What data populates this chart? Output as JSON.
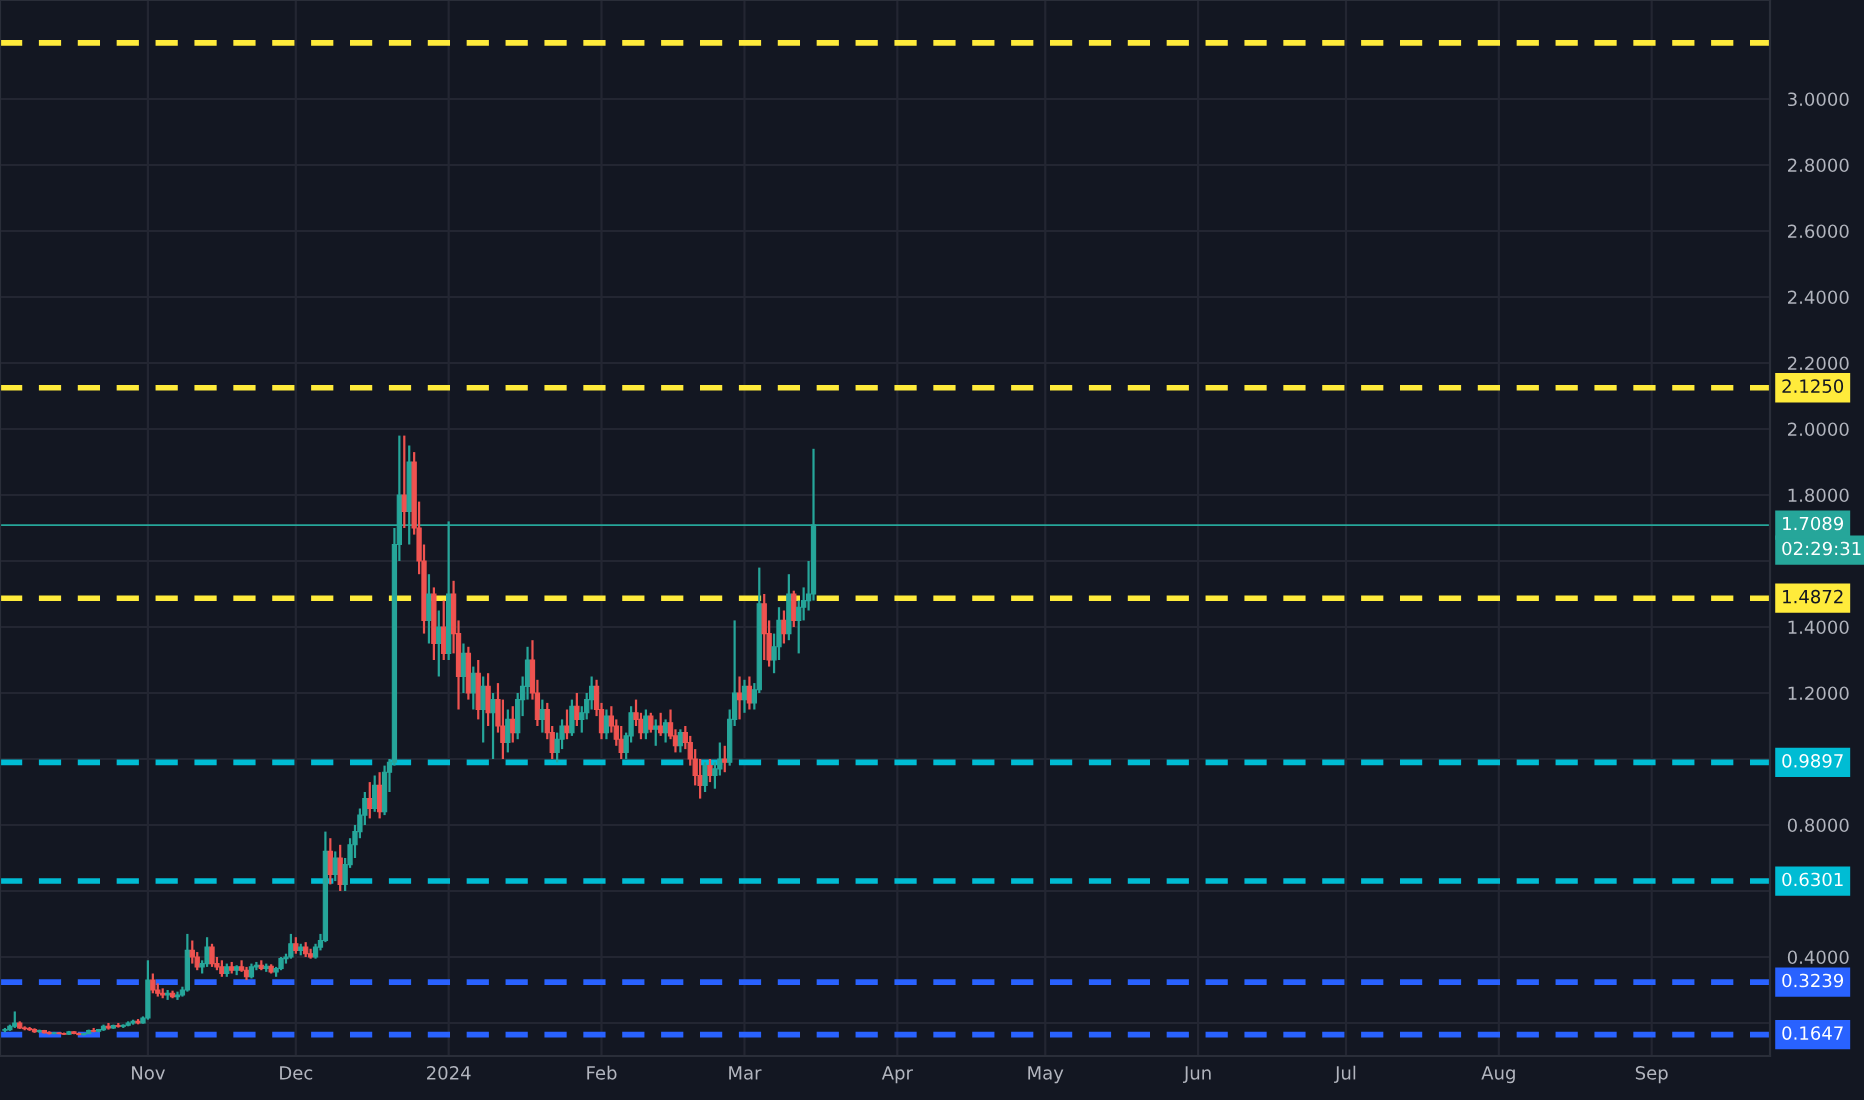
{
  "chart_data": {
    "type": "candlestick",
    "x": [
      "2023-10-03",
      "2023-10-04",
      "2023-10-05",
      "2023-10-06",
      "2023-10-07",
      "2023-10-08",
      "2023-10-09",
      "2023-10-10",
      "2023-10-11",
      "2023-10-12",
      "2023-10-13",
      "2023-10-14",
      "2023-10-15",
      "2023-10-16",
      "2023-10-17",
      "2023-10-18",
      "2023-10-19",
      "2023-10-20",
      "2023-10-21",
      "2023-10-22",
      "2023-10-23",
      "2023-10-24",
      "2023-10-25",
      "2023-10-26",
      "2023-10-27",
      "2023-10-28",
      "2023-10-29",
      "2023-10-30",
      "2023-10-31",
      "2023-11-01",
      "2023-11-02",
      "2023-11-03",
      "2023-11-04",
      "2023-11-05",
      "2023-11-06",
      "2023-11-07",
      "2023-11-08",
      "2023-11-09",
      "2023-11-10",
      "2023-11-11",
      "2023-11-12",
      "2023-11-13",
      "2023-11-14",
      "2023-11-15",
      "2023-11-16",
      "2023-11-17",
      "2023-11-18",
      "2023-11-19",
      "2023-11-20",
      "2023-11-21",
      "2023-11-22",
      "2023-11-23",
      "2023-11-24",
      "2023-11-25",
      "2023-11-26",
      "2023-11-27",
      "2023-11-28",
      "2023-11-29",
      "2023-11-30",
      "2023-12-01",
      "2023-12-02",
      "2023-12-03",
      "2023-12-04",
      "2023-12-05",
      "2023-12-06",
      "2023-12-07",
      "2023-12-08",
      "2023-12-09",
      "2023-12-10",
      "2023-12-11",
      "2023-12-12",
      "2023-12-13",
      "2023-12-14",
      "2023-12-15",
      "2023-12-16",
      "2023-12-17",
      "2023-12-18",
      "2023-12-19",
      "2023-12-20",
      "2023-12-21",
      "2023-12-22",
      "2023-12-23",
      "2023-12-24",
      "2023-12-25",
      "2023-12-26",
      "2023-12-27",
      "2023-12-28",
      "2023-12-29",
      "2023-12-30",
      "2023-12-31",
      "2024-01-01",
      "2024-01-02",
      "2024-01-03",
      "2024-01-04",
      "2024-01-05",
      "2024-01-06",
      "2024-01-07",
      "2024-01-08",
      "2024-01-09",
      "2024-01-10",
      "2024-01-11",
      "2024-01-12",
      "2024-01-13",
      "2024-01-14",
      "2024-01-15",
      "2024-01-16",
      "2024-01-17",
      "2024-01-18",
      "2024-01-19",
      "2024-01-20",
      "2024-01-21",
      "2024-01-22",
      "2024-01-23",
      "2024-01-24",
      "2024-01-25",
      "2024-01-26",
      "2024-01-27",
      "2024-01-28",
      "2024-01-29",
      "2024-01-30",
      "2024-01-31",
      "2024-02-01",
      "2024-02-02",
      "2024-02-03",
      "2024-02-04",
      "2024-02-05",
      "2024-02-06",
      "2024-02-07",
      "2024-02-08",
      "2024-02-09",
      "2024-02-10",
      "2024-02-11",
      "2024-02-12",
      "2024-02-13",
      "2024-02-14",
      "2024-02-15",
      "2024-02-16",
      "2024-02-17",
      "2024-02-18",
      "2024-02-19",
      "2024-02-20",
      "2024-02-21",
      "2024-02-22",
      "2024-02-23",
      "2024-02-24",
      "2024-02-25",
      "2024-02-26",
      "2024-02-27",
      "2024-02-28",
      "2024-02-29",
      "2024-03-01",
      "2024-03-02",
      "2024-03-03",
      "2024-03-04",
      "2024-03-05",
      "2024-03-06",
      "2024-03-07",
      "2024-03-08",
      "2024-03-09",
      "2024-03-10",
      "2024-03-11",
      "2024-03-12",
      "2024-03-13",
      "2024-03-14",
      "2024-03-15"
    ],
    "ohlc": [
      [
        0.178,
        0.185,
        0.172,
        0.18
      ],
      [
        0.18,
        0.195,
        0.176,
        0.19
      ],
      [
        0.19,
        0.235,
        0.185,
        0.2
      ],
      [
        0.2,
        0.205,
        0.182,
        0.185
      ],
      [
        0.185,
        0.19,
        0.178,
        0.183
      ],
      [
        0.183,
        0.188,
        0.176,
        0.18
      ],
      [
        0.18,
        0.184,
        0.17,
        0.174
      ],
      [
        0.174,
        0.18,
        0.17,
        0.177
      ],
      [
        0.177,
        0.179,
        0.168,
        0.171
      ],
      [
        0.171,
        0.175,
        0.165,
        0.168
      ],
      [
        0.168,
        0.173,
        0.166,
        0.17
      ],
      [
        0.17,
        0.172,
        0.166,
        0.168
      ],
      [
        0.168,
        0.171,
        0.164,
        0.166
      ],
      [
        0.166,
        0.176,
        0.164,
        0.173
      ],
      [
        0.173,
        0.175,
        0.166,
        0.168
      ],
      [
        0.168,
        0.171,
        0.163,
        0.165
      ],
      [
        0.165,
        0.17,
        0.162,
        0.168
      ],
      [
        0.168,
        0.18,
        0.166,
        0.177
      ],
      [
        0.177,
        0.185,
        0.172,
        0.175
      ],
      [
        0.175,
        0.182,
        0.172,
        0.18
      ],
      [
        0.18,
        0.195,
        0.176,
        0.19
      ],
      [
        0.19,
        0.2,
        0.18,
        0.185
      ],
      [
        0.185,
        0.195,
        0.182,
        0.192
      ],
      [
        0.192,
        0.2,
        0.186,
        0.19
      ],
      [
        0.19,
        0.196,
        0.185,
        0.193
      ],
      [
        0.193,
        0.205,
        0.19,
        0.2
      ],
      [
        0.2,
        0.21,
        0.195,
        0.205
      ],
      [
        0.205,
        0.212,
        0.196,
        0.2
      ],
      [
        0.2,
        0.22,
        0.198,
        0.215
      ],
      [
        0.215,
        0.39,
        0.21,
        0.33
      ],
      [
        0.33,
        0.35,
        0.29,
        0.3
      ],
      [
        0.3,
        0.32,
        0.28,
        0.29
      ],
      [
        0.29,
        0.305,
        0.275,
        0.285
      ],
      [
        0.285,
        0.3,
        0.27,
        0.29
      ],
      [
        0.29,
        0.298,
        0.275,
        0.28
      ],
      [
        0.28,
        0.295,
        0.27,
        0.285
      ],
      [
        0.285,
        0.31,
        0.28,
        0.3
      ],
      [
        0.3,
        0.47,
        0.295,
        0.42
      ],
      [
        0.42,
        0.45,
        0.38,
        0.4
      ],
      [
        0.4,
        0.415,
        0.36,
        0.37
      ],
      [
        0.37,
        0.39,
        0.35,
        0.38
      ],
      [
        0.38,
        0.46,
        0.37,
        0.43
      ],
      [
        0.43,
        0.44,
        0.37,
        0.38
      ],
      [
        0.38,
        0.4,
        0.36,
        0.37
      ],
      [
        0.37,
        0.39,
        0.34,
        0.35
      ],
      [
        0.35,
        0.38,
        0.34,
        0.37
      ],
      [
        0.37,
        0.385,
        0.35,
        0.36
      ],
      [
        0.36,
        0.375,
        0.345,
        0.37
      ],
      [
        0.37,
        0.39,
        0.355,
        0.36
      ],
      [
        0.36,
        0.37,
        0.33,
        0.34
      ],
      [
        0.34,
        0.38,
        0.335,
        0.37
      ],
      [
        0.37,
        0.385,
        0.36,
        0.375
      ],
      [
        0.375,
        0.39,
        0.36,
        0.365
      ],
      [
        0.365,
        0.38,
        0.355,
        0.372
      ],
      [
        0.372,
        0.378,
        0.35,
        0.355
      ],
      [
        0.355,
        0.37,
        0.34,
        0.365
      ],
      [
        0.365,
        0.4,
        0.36,
        0.395
      ],
      [
        0.395,
        0.41,
        0.38,
        0.4
      ],
      [
        0.4,
        0.47,
        0.395,
        0.44
      ],
      [
        0.44,
        0.46,
        0.41,
        0.42
      ],
      [
        0.42,
        0.44,
        0.405,
        0.43
      ],
      [
        0.43,
        0.445,
        0.4,
        0.41
      ],
      [
        0.41,
        0.425,
        0.395,
        0.4
      ],
      [
        0.4,
        0.44,
        0.395,
        0.43
      ],
      [
        0.43,
        0.47,
        0.42,
        0.45
      ],
      [
        0.45,
        0.78,
        0.445,
        0.72
      ],
      [
        0.72,
        0.76,
        0.62,
        0.65
      ],
      [
        0.65,
        0.72,
        0.63,
        0.7
      ],
      [
        0.7,
        0.74,
        0.6,
        0.62
      ],
      [
        0.62,
        0.7,
        0.6,
        0.68
      ],
      [
        0.68,
        0.76,
        0.67,
        0.74
      ],
      [
        0.74,
        0.8,
        0.7,
        0.78
      ],
      [
        0.78,
        0.85,
        0.76,
        0.83
      ],
      [
        0.83,
        0.9,
        0.8,
        0.88
      ],
      [
        0.88,
        0.93,
        0.82,
        0.85
      ],
      [
        0.85,
        0.95,
        0.84,
        0.92
      ],
      [
        0.92,
        0.96,
        0.82,
        0.84
      ],
      [
        0.84,
        0.98,
        0.83,
        0.96
      ],
      [
        0.96,
        1.0,
        0.9,
        0.99
      ],
      [
        0.99,
        1.7,
        0.98,
        1.65
      ],
      [
        1.65,
        1.98,
        1.6,
        1.8
      ],
      [
        1.8,
        1.98,
        1.7,
        1.75
      ],
      [
        1.75,
        1.95,
        1.65,
        1.9
      ],
      [
        1.9,
        1.93,
        1.68,
        1.7
      ],
      [
        1.7,
        1.78,
        1.56,
        1.6
      ],
      [
        1.6,
        1.65,
        1.38,
        1.42
      ],
      [
        1.42,
        1.56,
        1.35,
        1.5
      ],
      [
        1.5,
        1.52,
        1.3,
        1.35
      ],
      [
        1.35,
        1.45,
        1.25,
        1.4
      ],
      [
        1.4,
        1.48,
        1.3,
        1.32
      ],
      [
        1.32,
        1.72,
        1.3,
        1.5
      ],
      [
        1.5,
        1.54,
        1.32,
        1.38
      ],
      [
        1.38,
        1.42,
        1.15,
        1.25
      ],
      [
        1.25,
        1.35,
        1.2,
        1.32
      ],
      [
        1.32,
        1.34,
        1.18,
        1.2
      ],
      [
        1.2,
        1.28,
        1.15,
        1.26
      ],
      [
        1.26,
        1.3,
        1.12,
        1.15
      ],
      [
        1.15,
        1.25,
        1.05,
        1.22
      ],
      [
        1.22,
        1.26,
        1.1,
        1.14
      ],
      [
        1.14,
        1.2,
        1.0,
        1.18
      ],
      [
        1.18,
        1.23,
        1.08,
        1.1
      ],
      [
        1.1,
        1.18,
        1.0,
        1.05
      ],
      [
        1.05,
        1.15,
        1.02,
        1.12
      ],
      [
        1.12,
        1.16,
        1.05,
        1.08
      ],
      [
        1.08,
        1.2,
        1.06,
        1.18
      ],
      [
        1.18,
        1.25,
        1.13,
        1.22
      ],
      [
        1.22,
        1.34,
        1.18,
        1.3
      ],
      [
        1.3,
        1.36,
        1.18,
        1.2
      ],
      [
        1.2,
        1.24,
        1.1,
        1.12
      ],
      [
        1.12,
        1.18,
        1.08,
        1.15
      ],
      [
        1.15,
        1.17,
        1.06,
        1.08
      ],
      [
        1.08,
        1.1,
        1.0,
        1.02
      ],
      [
        1.02,
        1.08,
        0.99,
        1.06
      ],
      [
        1.06,
        1.12,
        1.03,
        1.1
      ],
      [
        1.1,
        1.15,
        1.06,
        1.08
      ],
      [
        1.08,
        1.18,
        1.07,
        1.16
      ],
      [
        1.16,
        1.2,
        1.1,
        1.12
      ],
      [
        1.12,
        1.16,
        1.08,
        1.14
      ],
      [
        1.14,
        1.2,
        1.12,
        1.18
      ],
      [
        1.18,
        1.25,
        1.15,
        1.22
      ],
      [
        1.22,
        1.24,
        1.13,
        1.15
      ],
      [
        1.15,
        1.17,
        1.06,
        1.08
      ],
      [
        1.08,
        1.15,
        1.06,
        1.13
      ],
      [
        1.13,
        1.16,
        1.08,
        1.1
      ],
      [
        1.1,
        1.12,
        1.04,
        1.06
      ],
      [
        1.06,
        1.1,
        1.0,
        1.02
      ],
      [
        1.02,
        1.08,
        1.0,
        1.07
      ],
      [
        1.07,
        1.16,
        1.05,
        1.14
      ],
      [
        1.14,
        1.18,
        1.1,
        1.12
      ],
      [
        1.12,
        1.14,
        1.06,
        1.08
      ],
      [
        1.08,
        1.15,
        1.06,
        1.13
      ],
      [
        1.13,
        1.14,
        1.08,
        1.09
      ],
      [
        1.09,
        1.12,
        1.04,
        1.1
      ],
      [
        1.1,
        1.14,
        1.07,
        1.08
      ],
      [
        1.08,
        1.12,
        1.05,
        1.11
      ],
      [
        1.11,
        1.15,
        1.06,
        1.07
      ],
      [
        1.07,
        1.09,
        1.02,
        1.04
      ],
      [
        1.04,
        1.09,
        1.02,
        1.08
      ],
      [
        1.08,
        1.1,
        1.03,
        1.05
      ],
      [
        1.05,
        1.07,
        0.98,
        1.0
      ],
      [
        1.0,
        1.03,
        0.92,
        0.95
      ],
      [
        0.95,
        1.0,
        0.88,
        0.92
      ],
      [
        0.92,
        0.99,
        0.9,
        0.98
      ],
      [
        0.98,
        1.0,
        0.93,
        0.95
      ],
      [
        0.95,
        0.99,
        0.91,
        0.97
      ],
      [
        0.97,
        1.05,
        0.95,
        1.0
      ],
      [
        1.0,
        1.04,
        0.96,
        0.99
      ],
      [
        0.99,
        1.15,
        0.98,
        1.12
      ],
      [
        1.12,
        1.42,
        1.1,
        1.2
      ],
      [
        1.2,
        1.25,
        1.12,
        1.18
      ],
      [
        1.18,
        1.24,
        1.14,
        1.22
      ],
      [
        1.22,
        1.25,
        1.15,
        1.17
      ],
      [
        1.17,
        1.23,
        1.15,
        1.21
      ],
      [
        1.21,
        1.58,
        1.2,
        1.47
      ],
      [
        1.47,
        1.5,
        1.3,
        1.38
      ],
      [
        1.38,
        1.42,
        1.28,
        1.3
      ],
      [
        1.3,
        1.38,
        1.26,
        1.34
      ],
      [
        1.34,
        1.46,
        1.3,
        1.42
      ],
      [
        1.42,
        1.45,
        1.35,
        1.38
      ],
      [
        1.38,
        1.56,
        1.36,
        1.5
      ],
      [
        1.5,
        1.51,
        1.4,
        1.42
      ],
      [
        1.42,
        1.48,
        1.32,
        1.46
      ],
      [
        1.46,
        1.52,
        1.42,
        1.48
      ],
      [
        1.48,
        1.6,
        1.45,
        1.5
      ],
      [
        1.5,
        1.94,
        1.48,
        1.709
      ]
    ],
    "xlim": [
      "2023-10-02",
      "2024-09-25"
    ],
    "xticks": [
      {
        "value": "2023-11-01",
        "label": "Nov"
      },
      {
        "value": "2023-12-01",
        "label": "Dec"
      },
      {
        "value": "2024-01-01",
        "label": "2024"
      },
      {
        "value": "2024-02-01",
        "label": "Feb"
      },
      {
        "value": "2024-03-01",
        "label": "Mar"
      },
      {
        "value": "2024-04-01",
        "label": "Apr"
      },
      {
        "value": "2024-05-01",
        "label": "May"
      },
      {
        "value": "2024-06-01",
        "label": "Jun"
      },
      {
        "value": "2024-07-01",
        "label": "Jul"
      },
      {
        "value": "2024-08-01",
        "label": "Aug"
      },
      {
        "value": "2024-09-01",
        "label": "Sep"
      }
    ],
    "ylim": [
      0.1,
      3.3
    ],
    "yticks": [
      {
        "value": 0.2,
        "label": null
      },
      {
        "value": 0.4,
        "label": "0.4000"
      },
      {
        "value": 0.6,
        "label": null
      },
      {
        "value": 0.8,
        "label": "0.8000"
      },
      {
        "value": 1.0,
        "label": null
      },
      {
        "value": 1.2,
        "label": "1.2000"
      },
      {
        "value": 1.4,
        "label": "1.4000"
      },
      {
        "value": 1.6,
        "label": null
      },
      {
        "value": 1.8,
        "label": "1.8000"
      },
      {
        "value": 2.0,
        "label": "2.0000"
      },
      {
        "value": 2.2,
        "label": "2.2000"
      },
      {
        "value": 2.4,
        "label": "2.4000"
      },
      {
        "value": 2.6,
        "label": "2.6000"
      },
      {
        "value": 2.8,
        "label": "2.8000"
      },
      {
        "value": 3.0,
        "label": "3.0000"
      }
    ],
    "grid": true,
    "ref_lines": [
      {
        "axis": "y",
        "value": 3.17,
        "color": "#ffeb3b",
        "line_style": "dashed"
      },
      {
        "axis": "y",
        "value": 2.125,
        "label": "2.1250",
        "color": "#ffeb3b",
        "line_style": "dashed"
      },
      {
        "axis": "y",
        "value": 1.4872,
        "label": "1.4872",
        "color": "#ffeb3b",
        "line_style": "dashed"
      },
      {
        "axis": "y",
        "value": 0.9897,
        "label": "0.9897",
        "color": "#00bcd4",
        "line_style": "dashed"
      },
      {
        "axis": "y",
        "value": 0.6301,
        "label": "0.6301",
        "color": "#00bcd4",
        "line_style": "dashed"
      },
      {
        "axis": "y",
        "value": 0.3239,
        "label": "0.3239",
        "color": "#2962ff",
        "line_style": "dashed"
      },
      {
        "axis": "y",
        "value": 0.1647,
        "label": "0.1647",
        "color": "#2962ff",
        "line_style": "dashed"
      },
      {
        "axis": "y",
        "value": 1.7089,
        "label": "1.7089",
        "color": "#26a69a",
        "line_style": "solid"
      }
    ],
    "annotations": [
      "02:29:31"
    ]
  }
}
